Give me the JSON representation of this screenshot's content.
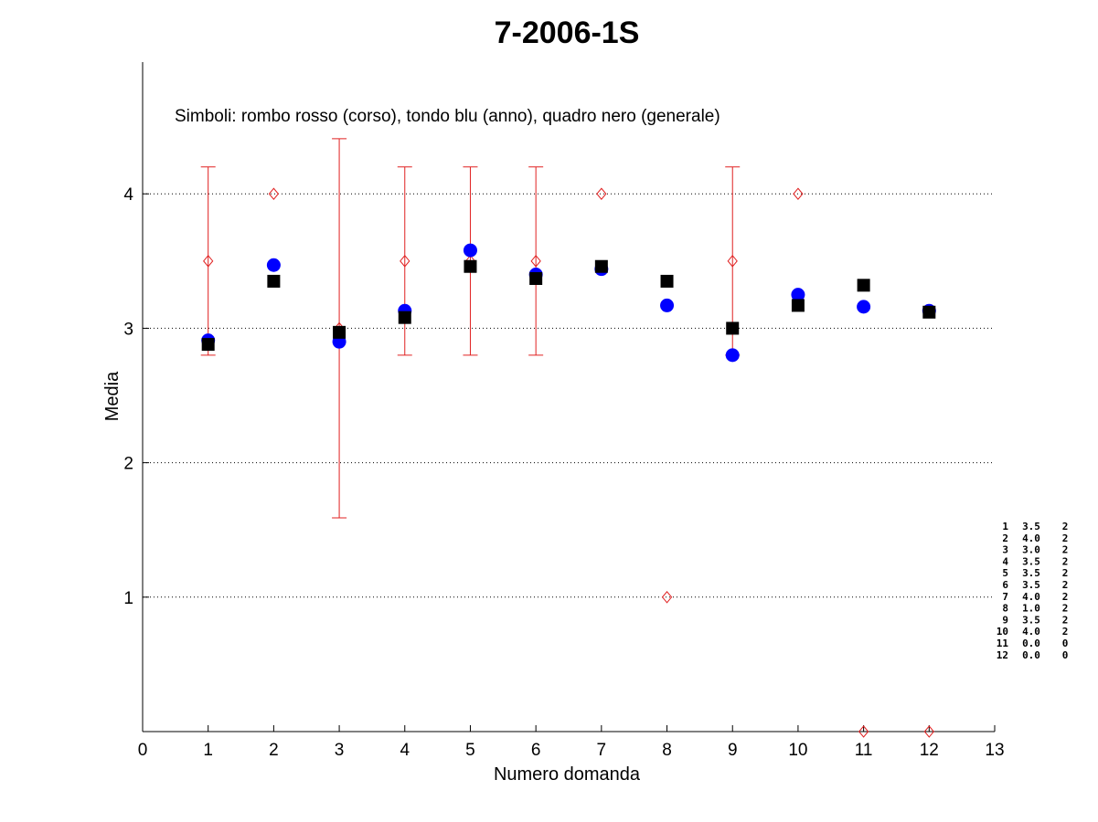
{
  "chart_data": {
    "type": "scatter",
    "title": "7-2006-1S",
    "annotation": "Simboli: rombo rosso (corso), tondo blu (anno), quadro nero (generale)",
    "xlabel": "Numero domanda",
    "ylabel": "Media",
    "xlim": [
      0,
      13
    ],
    "ylim": [
      0,
      4.98
    ],
    "x_ticks": [
      0,
      1,
      2,
      3,
      4,
      5,
      6,
      7,
      8,
      9,
      10,
      11,
      12,
      13
    ],
    "y_ticks": [
      1,
      2,
      3,
      4
    ],
    "grid": "horizontal dotted at y ticks",
    "x": [
      1,
      2,
      3,
      4,
      5,
      6,
      7,
      8,
      9,
      10,
      11,
      12
    ],
    "series": [
      {
        "name": "corso",
        "marker": "diamond",
        "color": "#e02020",
        "values": [
          3.5,
          4.0,
          3.0,
          3.5,
          3.5,
          3.5,
          4.0,
          1.0,
          3.5,
          4.0,
          0.0,
          0.0
        ],
        "error_bars": [
          {
            "x": 1,
            "low": 2.8,
            "high": 4.2
          },
          {
            "x": 3,
            "low": 1.59,
            "high": 4.41
          },
          {
            "x": 4,
            "low": 2.8,
            "high": 4.2
          },
          {
            "x": 5,
            "low": 2.8,
            "high": 4.2
          },
          {
            "x": 6,
            "low": 2.8,
            "high": 4.2
          },
          {
            "x": 9,
            "low": 2.8,
            "high": 4.2
          }
        ]
      },
      {
        "name": "anno",
        "marker": "circle",
        "color": "#0000ff",
        "values": [
          2.91,
          3.47,
          2.9,
          3.13,
          3.58,
          3.4,
          3.44,
          3.17,
          2.8,
          3.25,
          3.16,
          3.13
        ]
      },
      {
        "name": "generale",
        "marker": "square",
        "color": "#000000",
        "values": [
          2.88,
          3.35,
          2.97,
          3.08,
          3.46,
          3.37,
          3.46,
          3.35,
          3.0,
          3.17,
          3.32,
          3.12
        ]
      }
    ],
    "side_table": [
      [
        "1",
        "3.5",
        "2"
      ],
      [
        "2",
        "4.0",
        "2"
      ],
      [
        "3",
        "3.0",
        "2"
      ],
      [
        "4",
        "3.5",
        "2"
      ],
      [
        "5",
        "3.5",
        "2"
      ],
      [
        "6",
        "3.5",
        "2"
      ],
      [
        "7",
        "4.0",
        "2"
      ],
      [
        "8",
        "1.0",
        "2"
      ],
      [
        "9",
        "3.5",
        "2"
      ],
      [
        "10",
        "4.0",
        "2"
      ],
      [
        "11",
        "0.0",
        "0"
      ],
      [
        "12",
        "0.0",
        "0"
      ]
    ]
  }
}
